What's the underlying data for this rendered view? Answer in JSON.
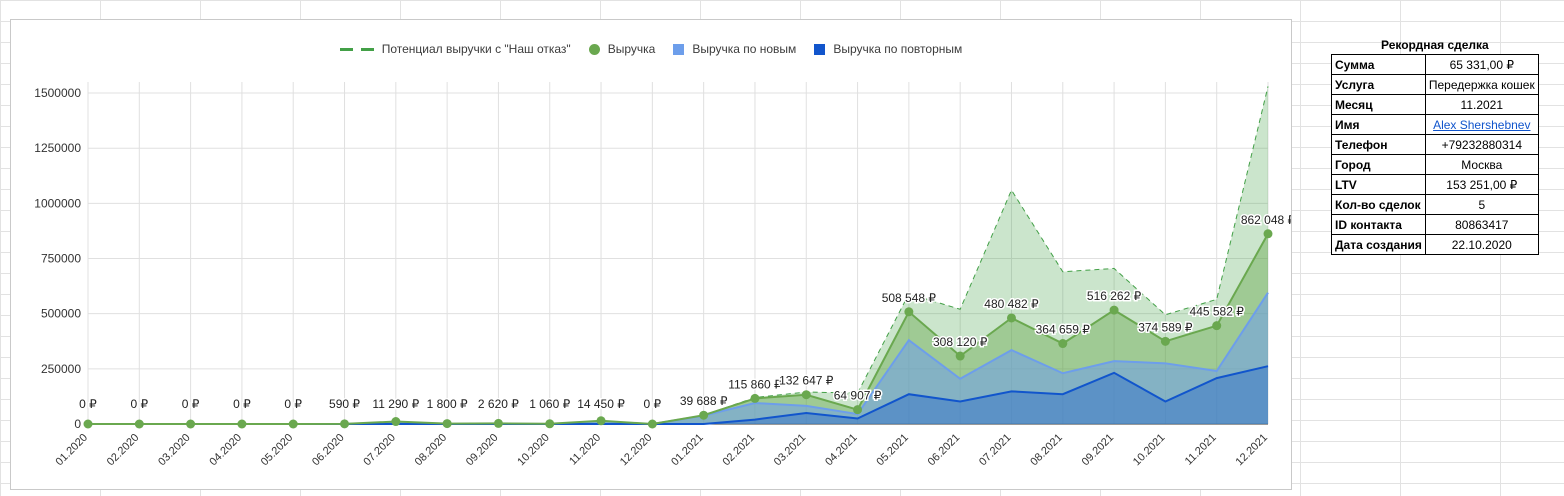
{
  "chart_data": {
    "type": "area",
    "title": "",
    "xlabel": "",
    "ylabel": "",
    "ylim": [
      0,
      1550000
    ],
    "yticks": [
      "0",
      "250000",
      "500000",
      "750000",
      "1000000",
      "1250000",
      "1500000"
    ],
    "legend_position": "top",
    "grid": true,
    "categories": [
      "01.2020",
      "02.2020",
      "03.2020",
      "04.2020",
      "05.2020",
      "06.2020",
      "07.2020",
      "08.2020",
      "09.2020",
      "10.2020",
      "11.2020",
      "12.2020",
      "01.2021",
      "02.2021",
      "03.2021",
      "04.2021",
      "05.2021",
      "06.2021",
      "07.2021",
      "08.2021",
      "09.2021",
      "10.2021",
      "11.2021",
      "12.2021"
    ],
    "series": [
      {
        "name": "Потенциал выручки с \"Наш отказ\"",
        "color": "#43a047",
        "style": "dashed-area",
        "values": [
          0,
          0,
          0,
          0,
          0,
          590,
          11290,
          1800,
          2620,
          1060,
          14450,
          0,
          39688,
          120000,
          145000,
          140000,
          590000,
          520000,
          1060000,
          690000,
          705000,
          495000,
          565000,
          1530000
        ]
      },
      {
        "name": "Выручка",
        "color": "#6aa84f",
        "style": "line-points",
        "values": [
          0,
          0,
          0,
          0,
          0,
          590,
          11290,
          1800,
          2620,
          1060,
          14450,
          0,
          39688,
          115860,
          132647,
          64907,
          508548,
          308120,
          480482,
          364659,
          516262,
          374589,
          445582,
          862048
        ],
        "labels": [
          "0 ₽",
          "0 ₽",
          "0 ₽",
          "0 ₽",
          "0 ₽",
          "590 ₽",
          "11 290 ₽",
          "1 800 ₽",
          "2 620 ₽",
          "1 060 ₽",
          "14 450 ₽",
          "0 ₽",
          "39 688 ₽",
          "115 860 ₽",
          "132 647 ₽",
          "64 907 ₽",
          "508 548 ₽",
          "308 120 ₽",
          "480 482 ₽",
          "364 659 ₽",
          "516 262 ₽",
          "374 589 ₽",
          "445 582 ₽",
          "862 048 ₽"
        ]
      },
      {
        "name": "Выручка по новым",
        "color": "#6d9eeb",
        "style": "area",
        "values": [
          0,
          0,
          0,
          0,
          0,
          0,
          8000,
          0,
          1000,
          0,
          3000,
          0,
          38000,
          95000,
          82000,
          45000,
          380000,
          205000,
          335000,
          230000,
          285000,
          275000,
          240000,
          595000
        ]
      },
      {
        "name": "Выручка по повторным",
        "color": "#1155cc",
        "style": "area",
        "values": [
          0,
          0,
          0,
          0,
          0,
          0,
          0,
          0,
          0,
          0,
          0,
          0,
          0,
          20000,
          50000,
          25000,
          135000,
          102000,
          148000,
          135000,
          232000,
          102000,
          208000,
          262000
        ]
      }
    ]
  },
  "record": {
    "title": "Рекордная сделка",
    "rows": [
      {
        "key": "Сумма",
        "value": "65 331,00 ₽"
      },
      {
        "key": "Услуга",
        "value": "Передержка кошек"
      },
      {
        "key": "Месяц",
        "value": "11.2021"
      },
      {
        "key": "Имя",
        "value": "Alex Shershebnev",
        "link": true
      },
      {
        "key": "Телефон",
        "value": "+79232880314"
      },
      {
        "key": "Город",
        "value": "Москва"
      },
      {
        "key": "LTV",
        "value": "153 251,00 ₽"
      },
      {
        "key": "Кол-во сделок",
        "value": "5"
      },
      {
        "key": "ID контакта",
        "value": "80863417"
      },
      {
        "key": "Дата создания",
        "value": "22.10.2020"
      }
    ]
  }
}
